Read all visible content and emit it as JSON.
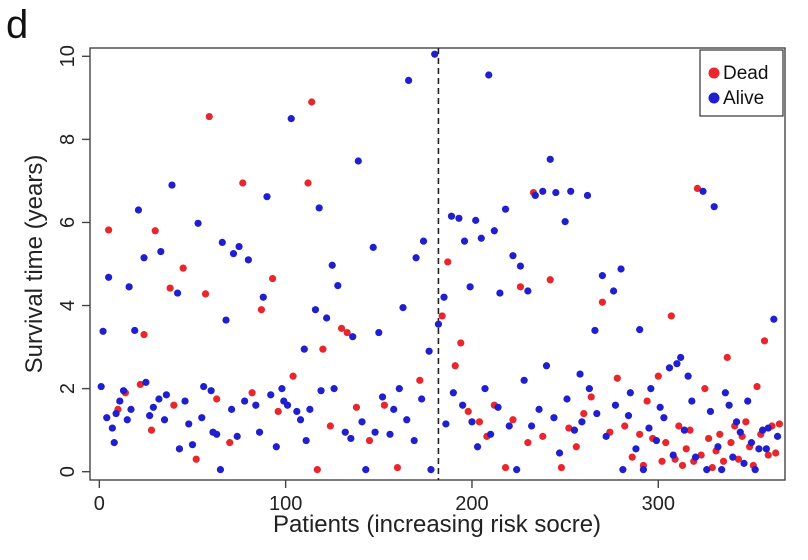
{
  "panel_label": "d",
  "chart_data": {
    "type": "scatter",
    "xlabel": "Patients (increasing risk socre)",
    "ylabel": "Survival time (years)",
    "xlim": [
      -5,
      368
    ],
    "ylim": [
      -0.2,
      10.2
    ],
    "xticks": [
      0,
      100,
      200,
      300
    ],
    "yticks": [
      0,
      2,
      4,
      6,
      8,
      10
    ],
    "grid": false,
    "legend_position": "top-right",
    "cutoff_x": 182,
    "series": [
      {
        "name": "Dead",
        "color": "#e8262b",
        "points": [
          [
            5,
            5.82
          ],
          [
            30,
            5.8
          ],
          [
            24,
            3.3
          ],
          [
            38,
            4.42
          ],
          [
            45,
            4.9
          ],
          [
            57,
            4.28
          ],
          [
            59,
            8.55
          ],
          [
            77,
            6.95
          ],
          [
            87,
            3.9
          ],
          [
            93,
            4.65
          ],
          [
            112,
            6.95
          ],
          [
            114,
            8.9
          ],
          [
            120,
            2.95
          ],
          [
            130,
            3.45
          ],
          [
            133,
            3.35
          ],
          [
            10,
            1.5
          ],
          [
            14,
            1.9
          ],
          [
            22,
            2.1
          ],
          [
            28,
            1.0
          ],
          [
            40,
            1.6
          ],
          [
            52,
            0.3
          ],
          [
            63,
            1.75
          ],
          [
            70,
            0.7
          ],
          [
            82,
            1.9
          ],
          [
            96,
            1.45
          ],
          [
            104,
            2.3
          ],
          [
            117,
            0.05
          ],
          [
            124,
            1.1
          ],
          [
            138,
            1.55
          ],
          [
            145,
            0.75
          ],
          [
            153,
            1.6
          ],
          [
            160,
            0.1
          ],
          [
            172,
            2.2
          ],
          [
            184,
            3.75
          ],
          [
            187,
            5.05
          ],
          [
            191,
            2.55
          ],
          [
            194,
            3.1
          ],
          [
            198,
            1.45
          ],
          [
            204,
            1.2
          ],
          [
            208,
            0.85
          ],
          [
            212,
            1.6
          ],
          [
            218,
            0.1
          ],
          [
            222,
            1.25
          ],
          [
            226,
            4.45
          ],
          [
            230,
            0.7
          ],
          [
            233,
            6.72
          ],
          [
            238,
            0.85
          ],
          [
            242,
            4.62
          ],
          [
            248,
            0.1
          ],
          [
            252,
            1.05
          ],
          [
            256,
            0.6
          ],
          [
            260,
            1.4
          ],
          [
            264,
            1.8
          ],
          [
            270,
            4.08
          ],
          [
            274,
            0.95
          ],
          [
            278,
            2.25
          ],
          [
            282,
            1.1
          ],
          [
            286,
            0.35
          ],
          [
            290,
            0.9
          ],
          [
            292,
            0.15
          ],
          [
            294,
            1.7
          ],
          [
            297,
            0.8
          ],
          [
            300,
            2.3
          ],
          [
            302,
            0.25
          ],
          [
            304,
            0.7
          ],
          [
            307,
            3.75
          ],
          [
            309,
            0.3
          ],
          [
            311,
            1.1
          ],
          [
            313,
            0.15
          ],
          [
            315,
            0.55
          ],
          [
            317,
            1.0
          ],
          [
            319,
            0.25
          ],
          [
            321,
            6.82
          ],
          [
            323,
            0.4
          ],
          [
            325,
            2.0
          ],
          [
            327,
            0.8
          ],
          [
            329,
            0.1
          ],
          [
            331,
            0.5
          ],
          [
            333,
            0.9
          ],
          [
            335,
            0.25
          ],
          [
            337,
            2.75
          ],
          [
            339,
            0.7
          ],
          [
            341,
            1.1
          ],
          [
            343,
            0.3
          ],
          [
            345,
            0.85
          ],
          [
            347,
            1.2
          ],
          [
            349,
            0.6
          ],
          [
            351,
            0.15
          ],
          [
            353,
            2.05
          ],
          [
            355,
            0.9
          ],
          [
            357,
            3.15
          ],
          [
            359,
            0.4
          ],
          [
            361,
            1.1
          ],
          [
            363,
            0.45
          ],
          [
            365,
            1.15
          ]
        ]
      },
      {
        "name": "Alive",
        "color": "#1f1fd0",
        "points": [
          [
            2,
            3.38
          ],
          [
            5,
            4.68
          ],
          [
            9,
            1.4
          ],
          [
            13,
            1.95
          ],
          [
            16,
            4.45
          ],
          [
            19,
            3.4
          ],
          [
            21,
            6.3
          ],
          [
            24,
            5.15
          ],
          [
            27,
            1.35
          ],
          [
            29,
            1.55
          ],
          [
            33,
            5.3
          ],
          [
            36,
            1.85
          ],
          [
            39,
            6.9
          ],
          [
            42,
            4.3
          ],
          [
            48,
            1.15
          ],
          [
            53,
            5.98
          ],
          [
            55,
            1.3
          ],
          [
            60,
            1.95
          ],
          [
            63,
            0.9
          ],
          [
            66,
            5.52
          ],
          [
            68,
            3.65
          ],
          [
            72,
            5.25
          ],
          [
            75,
            5.42
          ],
          [
            78,
            1.7
          ],
          [
            80,
            5.1
          ],
          [
            84,
            1.6
          ],
          [
            88,
            4.2
          ],
          [
            90,
            6.62
          ],
          [
            99,
            1.7
          ],
          [
            103,
            8.5
          ],
          [
            108,
            1.25
          ],
          [
            110,
            2.95
          ],
          [
            113,
            1.5
          ],
          [
            116,
            3.9
          ],
          [
            118,
            6.35
          ],
          [
            122,
            3.7
          ],
          [
            125,
            4.97
          ],
          [
            128,
            4.48
          ],
          [
            132,
            0.95
          ],
          [
            136,
            3.25
          ],
          [
            139,
            7.48
          ],
          [
            143,
            0.05
          ],
          [
            147,
            5.4
          ],
          [
            150,
            3.35
          ],
          [
            156,
            0.9
          ],
          [
            163,
            3.95
          ],
          [
            166,
            9.42
          ],
          [
            170,
            5.15
          ],
          [
            174,
            5.55
          ],
          [
            177,
            2.9
          ],
          [
            180,
            10.05
          ],
          [
            182,
            3.55
          ],
          [
            185,
            4.2
          ],
          [
            189,
            6.15
          ],
          [
            193,
            6.1
          ],
          [
            196,
            5.55
          ],
          [
            199,
            4.45
          ],
          [
            202,
            6.05
          ],
          [
            205,
            5.62
          ],
          [
            209,
            9.55
          ],
          [
            212,
            5.8
          ],
          [
            215,
            4.3
          ],
          [
            218,
            6.32
          ],
          [
            222,
            5.2
          ],
          [
            226,
            4.95
          ],
          [
            230,
            4.35
          ],
          [
            234,
            6.65
          ],
          [
            238,
            6.75
          ],
          [
            242,
            7.52
          ],
          [
            245,
            6.72
          ],
          [
            250,
            6.02
          ],
          [
            253,
            6.75
          ],
          [
            258,
            2.35
          ],
          [
            262,
            6.65
          ],
          [
            266,
            3.4
          ],
          [
            270,
            4.72
          ],
          [
            276,
            4.35
          ],
          [
            280,
            4.88
          ],
          [
            285,
            1.9
          ],
          [
            290,
            3.42
          ],
          [
            296,
            2.0
          ],
          [
            301,
            1.55
          ],
          [
            306,
            2.5
          ],
          [
            312,
            2.75
          ],
          [
            318,
            1.7
          ],
          [
            324,
            6.75
          ],
          [
            330,
            6.38
          ],
          [
            336,
            1.9
          ],
          [
            342,
            1.2
          ],
          [
            348,
            1.7
          ],
          [
            354,
            0.55
          ],
          [
            359,
            1.05
          ],
          [
            362,
            3.67
          ],
          [
            1,
            2.05
          ],
          [
            4,
            1.3
          ],
          [
            7,
            1.05
          ],
          [
            8,
            0.7
          ],
          [
            11,
            1.7
          ],
          [
            15,
            1.25
          ],
          [
            17,
            1.5
          ],
          [
            25,
            2.15
          ],
          [
            32,
            1.75
          ],
          [
            35,
            1.25
          ],
          [
            43,
            0.55
          ],
          [
            46,
            1.7
          ],
          [
            50,
            0.65
          ],
          [
            56,
            2.05
          ],
          [
            61,
            0.95
          ],
          [
            65,
            0.05
          ],
          [
            71,
            1.5
          ],
          [
            74,
            0.85
          ],
          [
            86,
            0.95
          ],
          [
            92,
            1.85
          ],
          [
            95,
            0.6
          ],
          [
            98,
            2.0
          ],
          [
            101,
            1.6
          ],
          [
            106,
            1.45
          ],
          [
            111,
            0.75
          ],
          [
            119,
            1.95
          ],
          [
            126,
            2.0
          ],
          [
            135,
            0.8
          ],
          [
            141,
            1.2
          ],
          [
            148,
            0.95
          ],
          [
            152,
            1.8
          ],
          [
            158,
            1.5
          ],
          [
            161,
            2.0
          ],
          [
            165,
            1.25
          ],
          [
            169,
            0.75
          ],
          [
            173,
            1.75
          ],
          [
            178,
            0.05
          ],
          [
            186,
            1.15
          ],
          [
            190,
            1.9
          ],
          [
            195,
            1.6
          ],
          [
            200,
            1.2
          ],
          [
            203,
            0.6
          ],
          [
            207,
            2.0
          ],
          [
            210,
            0.9
          ],
          [
            214,
            1.55
          ],
          [
            220,
            1.1
          ],
          [
            224,
            0.05
          ],
          [
            228,
            2.2
          ],
          [
            232,
            1.1
          ],
          [
            236,
            1.5
          ],
          [
            240,
            2.55
          ],
          [
            244,
            1.3
          ],
          [
            247,
            0.45
          ],
          [
            251,
            1.75
          ],
          [
            255,
            1.0
          ],
          [
            259,
            1.2
          ],
          [
            263,
            2.0
          ],
          [
            267,
            1.4
          ],
          [
            272,
            0.85
          ],
          [
            277,
            1.6
          ],
          [
            281,
            0.05
          ],
          [
            284,
            1.35
          ],
          [
            288,
            0.55
          ],
          [
            292,
            0.05
          ],
          [
            295,
            1.05
          ],
          [
            299,
            0.75
          ],
          [
            303,
            1.3
          ],
          [
            308,
            0.4
          ],
          [
            310,
            2.6
          ],
          [
            314,
            1.0
          ],
          [
            316,
            2.3
          ],
          [
            320,
            0.35
          ],
          [
            326,
            0.05
          ],
          [
            328,
            1.45
          ],
          [
            332,
            0.6
          ],
          [
            334,
            0.05
          ],
          [
            338,
            1.6
          ],
          [
            340,
            0.35
          ],
          [
            344,
            0.95
          ],
          [
            346,
            0.2
          ],
          [
            350,
            0.7
          ],
          [
            352,
            0.05
          ],
          [
            356,
            1.0
          ],
          [
            358,
            0.55
          ],
          [
            364,
            0.85
          ]
        ]
      }
    ]
  }
}
